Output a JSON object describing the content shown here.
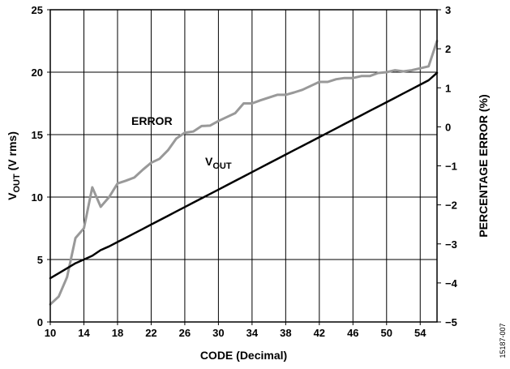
{
  "chart_data": {
    "type": "line",
    "xlabel": "CODE (Decimal)",
    "ylabel_left": {
      "main": "V",
      "sub": "OUT",
      "rest": " (V rms)"
    },
    "ylabel_right": "PERCENTAGE ERROR (%)",
    "xlim": [
      10,
      56
    ],
    "ylim_left": [
      0,
      25
    ],
    "ylim_right": [
      -5,
      3
    ],
    "grid": true,
    "x_ticks": [
      10,
      14,
      18,
      22,
      26,
      30,
      34,
      38,
      42,
      46,
      50,
      54
    ],
    "y_left_ticks": [
      0,
      5,
      10,
      15,
      20,
      25
    ],
    "y_right_ticks": [
      3,
      2,
      1,
      0,
      -1,
      -2,
      -3,
      -4,
      -5
    ],
    "y_right_tick_labels": [
      "3",
      "2",
      "1",
      "0",
      "−1",
      "−2",
      "−3",
      "−4",
      "−5"
    ],
    "series": [
      {
        "name": "ERROR",
        "axis": "right",
        "color": "#999999",
        "x": [
          10,
          11,
          12,
          13,
          14,
          15,
          16,
          17,
          18,
          19,
          20,
          21,
          22,
          23,
          24,
          25,
          26,
          27,
          28,
          29,
          30,
          31,
          32,
          33,
          34,
          35,
          36,
          37,
          38,
          39,
          40,
          41,
          42,
          43,
          44,
          45,
          46,
          47,
          48,
          49,
          50,
          51,
          52,
          53,
          54,
          55,
          56
        ],
        "values": [
          -4.55,
          -4.35,
          -3.85,
          -2.85,
          -2.6,
          -1.55,
          -2.05,
          -1.8,
          -1.45,
          -1.38,
          -1.3,
          -1.1,
          -0.92,
          -0.82,
          -0.6,
          -0.3,
          -0.15,
          -0.12,
          0.02,
          0.03,
          0.15,
          0.25,
          0.35,
          0.6,
          0.6,
          0.68,
          0.75,
          0.82,
          0.82,
          0.88,
          0.95,
          1.05,
          1.15,
          1.15,
          1.22,
          1.25,
          1.25,
          1.3,
          1.3,
          1.38,
          1.4,
          1.45,
          1.42,
          1.45,
          1.5,
          1.55,
          2.2
        ]
      },
      {
        "name": "VOUT",
        "label": {
          "main": "V",
          "sub": "OUT"
        },
        "axis": "left",
        "color": "#000000",
        "x": [
          10,
          11,
          12,
          13,
          14,
          15,
          16,
          17,
          18,
          19,
          20,
          21,
          22,
          23,
          24,
          25,
          26,
          27,
          28,
          29,
          30,
          31,
          32,
          33,
          34,
          35,
          36,
          37,
          38,
          39,
          40,
          41,
          42,
          43,
          44,
          45,
          46,
          47,
          48,
          49,
          50,
          51,
          52,
          53,
          54,
          55,
          56
        ],
        "values": [
          3.5,
          3.9,
          4.3,
          4.7,
          5.0,
          5.3,
          5.75,
          6.05,
          6.4,
          6.75,
          7.1,
          7.45,
          7.8,
          8.15,
          8.5,
          8.85,
          9.2,
          9.55,
          9.9,
          10.25,
          10.6,
          10.95,
          11.3,
          11.65,
          12.0,
          12.35,
          12.7,
          13.05,
          13.4,
          13.75,
          14.1,
          14.45,
          14.8,
          15.15,
          15.5,
          15.85,
          16.2,
          16.55,
          16.9,
          17.25,
          17.6,
          17.95,
          18.3,
          18.65,
          19.0,
          19.35,
          19.95
        ]
      }
    ],
    "annotations": {
      "error_label": "ERROR",
      "vout_main": "V",
      "vout_sub": "OUT"
    },
    "figure_id": "15187-007"
  }
}
